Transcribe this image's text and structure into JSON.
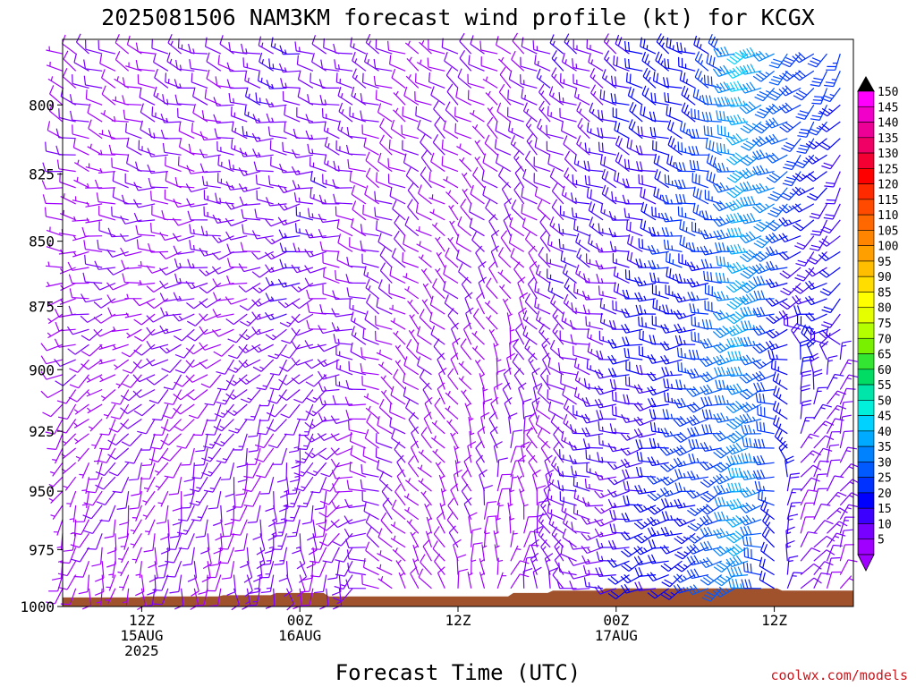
{
  "chart_data": {
    "type": "wind-barb-profile",
    "title": "2025081506 NAM3KM forecast wind profile (kt) for KCGX",
    "xlabel": "Forecast Time (UTC)",
    "ylabel": "",
    "units": "kt",
    "y_axis": {
      "ticks": [
        800,
        825,
        850,
        875,
        900,
        925,
        950,
        975,
        1000
      ],
      "range": [
        777,
        1000
      ]
    },
    "x_axis": {
      "range": [
        6,
        66
      ],
      "tick_labels": [
        {
          "hour": 12,
          "lines": [
            "12Z",
            "15AUG",
            "2025"
          ]
        },
        {
          "hour": 24,
          "lines": [
            "00Z",
            "16AUG"
          ]
        },
        {
          "hour": 36,
          "lines": [
            "12Z"
          ]
        },
        {
          "hour": 48,
          "lines": [
            "00Z",
            "17AUG"
          ]
        },
        {
          "hour": 60,
          "lines": [
            "12Z"
          ]
        }
      ]
    },
    "colorbar": {
      "labels": [
        "150",
        "145",
        "140",
        "135",
        "130",
        "125",
        "120",
        "115",
        "110",
        "105",
        "100",
        "95",
        "90",
        "85",
        "80",
        "75",
        "70",
        "65",
        "60",
        "55",
        "50",
        "45",
        "40",
        "35",
        "30",
        "25",
        "20",
        "15",
        "10",
        "5"
      ],
      "colors": [
        "#ff00ff",
        "#f000c8",
        "#ec0096",
        "#f00064",
        "#f50032",
        "#ff0000",
        "#ff2a00",
        "#ff4a00",
        "#ff6800",
        "#ff8400",
        "#ffa000",
        "#ffbe00",
        "#ffdd00",
        "#ffff00",
        "#e6ff00",
        "#b4ff00",
        "#78f000",
        "#32e632",
        "#00dc64",
        "#00e6aa",
        "#00f0dc",
        "#00d2ff",
        "#00aaff",
        "#0082ff",
        "#005aff",
        "#0032ff",
        "#0000ff",
        "#3c00ff",
        "#7800ff",
        "#a000ff"
      ]
    },
    "terrain": {
      "color": "#a0522d",
      "surface_pressure": [
        {
          "hour": 6,
          "p": 996
        },
        {
          "hour": 11.8,
          "p": 996
        },
        {
          "hour": 12.2,
          "p": 995.5
        },
        {
          "hour": 17.8,
          "p": 995.5
        },
        {
          "hour": 18.2,
          "p": 995
        },
        {
          "hour": 21.8,
          "p": 995
        },
        {
          "hour": 22.2,
          "p": 994
        },
        {
          "hour": 25.8,
          "p": 994
        },
        {
          "hour": 26.2,
          "p": 995.5
        },
        {
          "hour": 39.8,
          "p": 995.5
        },
        {
          "hour": 40.2,
          "p": 994
        },
        {
          "hour": 42.8,
          "p": 994
        },
        {
          "hour": 43.2,
          "p": 993
        },
        {
          "hour": 46.8,
          "p": 993
        },
        {
          "hour": 47.2,
          "p": 992
        },
        {
          "hour": 60.2,
          "p": 992
        },
        {
          "hour": 60.6,
          "p": 993
        },
        {
          "hour": 66,
          "p": 993
        }
      ]
    },
    "barb_grid": {
      "hour_start": 6,
      "hour_end": 65,
      "hour_step": 1,
      "p_top": 782,
      "p_bottom": 1000,
      "p_step": 6
    },
    "wind_model": {
      "direction_deg": [
        {
          "hour": 6,
          "p": 780,
          "dir": 300
        },
        {
          "hour": 6,
          "p": 1000,
          "dir": 190
        },
        {
          "hour": 24,
          "p": 780,
          "dir": 285
        },
        {
          "hour": 24,
          "p": 1000,
          "dir": 170
        },
        {
          "hour": 34,
          "p": 780,
          "dir": 300
        },
        {
          "hour": 34,
          "p": 1000,
          "dir": 330
        },
        {
          "hour": 40,
          "p": 780,
          "dir": 300
        },
        {
          "hour": 40,
          "p": 1000,
          "dir": 20
        },
        {
          "hour": 48,
          "p": 780,
          "dir": 300
        },
        {
          "hour": 48,
          "p": 1000,
          "dir": 250
        },
        {
          "hour": 56,
          "p": 780,
          "dir": 295
        },
        {
          "hour": 56,
          "p": 1000,
          "dir": 235
        },
        {
          "hour": 58,
          "p": 780,
          "dir": 245
        },
        {
          "hour": 58,
          "p": 1000,
          "dir": 255
        },
        {
          "hour": 62,
          "p": 780,
          "dir": 225
        },
        {
          "hour": 62,
          "p": 1000,
          "dir": 35
        },
        {
          "hour": 65,
          "p": 780,
          "dir": 215
        },
        {
          "hour": 65,
          "p": 1000,
          "dir": 30
        }
      ],
      "speed_kt": [
        {
          "hour": 6,
          "p": 780,
          "spd": 8
        },
        {
          "hour": 6,
          "p": 1000,
          "spd": 7
        },
        {
          "hour": 24,
          "p": 780,
          "spd": 14
        },
        {
          "hour": 24,
          "p": 1000,
          "spd": 12
        },
        {
          "hour": 34,
          "p": 780,
          "spd": 9
        },
        {
          "hour": 34,
          "p": 1000,
          "spd": 7
        },
        {
          "hour": 40,
          "p": 780,
          "spd": 10
        },
        {
          "hour": 40,
          "p": 1000,
          "spd": 8
        },
        {
          "hour": 48,
          "p": 780,
          "spd": 17
        },
        {
          "hour": 48,
          "p": 1000,
          "spd": 16
        },
        {
          "hour": 56,
          "p": 780,
          "spd": 28
        },
        {
          "hour": 56,
          "p": 1000,
          "spd": 30
        },
        {
          "hour": 58,
          "p": 780,
          "spd": 44
        },
        {
          "hour": 58,
          "p": 1000,
          "spd": 38
        },
        {
          "hour": 62,
          "p": 780,
          "spd": 30
        },
        {
          "hour": 62,
          "p": 1000,
          "spd": 8
        },
        {
          "hour": 65,
          "p": 780,
          "spd": 25
        },
        {
          "hour": 65,
          "p": 1000,
          "spd": 8
        }
      ]
    }
  },
  "credit": "coolwx.com/models"
}
